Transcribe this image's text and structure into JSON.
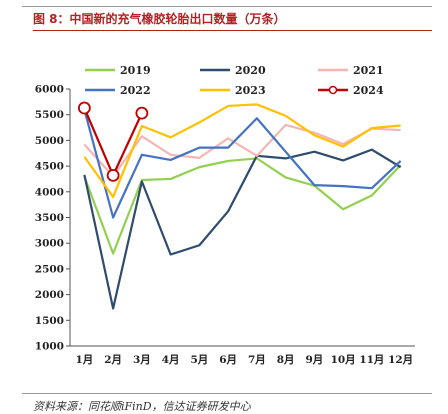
{
  "figure": {
    "title": "图 8：中国新的充气橡胶轮胎出口数量（万条）",
    "source": "资料来源：同花顺iFinD，信达证券研发中心"
  },
  "chart_data": {
    "type": "line",
    "title": "中国新的充气橡胶轮胎出口数量（万条）",
    "xlabel": "",
    "ylabel": "",
    "categories": [
      "1月",
      "2月",
      "3月",
      "4月",
      "5月",
      "6月",
      "7月",
      "8月",
      "9月",
      "10月",
      "11月",
      "12月"
    ],
    "ylim": [
      1000,
      6000
    ],
    "yticks": [
      1000,
      1500,
      2000,
      2500,
      3000,
      3500,
      4000,
      4500,
      5000,
      5500,
      6000
    ],
    "grid": false,
    "legend": "top",
    "series": [
      {
        "name": "2019",
        "color": "#92d050",
        "marker": false,
        "values": [
          4300,
          2800,
          4230,
          4250,
          4480,
          4600,
          4650,
          4280,
          4120,
          3660,
          3930,
          4520
        ]
      },
      {
        "name": "2020",
        "color": "#2f4b6e",
        "marker": false,
        "values": [
          4330,
          1730,
          4200,
          2780,
          2960,
          3620,
          4700,
          4650,
          4780,
          4610,
          4820,
          4480
        ]
      },
      {
        "name": "2021",
        "color": "#f4b6b3",
        "marker": false,
        "values": [
          4920,
          4300,
          5080,
          4720,
          4660,
          5040,
          4700,
          5300,
          5150,
          4930,
          5230,
          5200
        ]
      },
      {
        "name": "2022",
        "color": "#4472c4",
        "marker": false,
        "values": [
          5600,
          3500,
          4720,
          4620,
          4860,
          4860,
          5430,
          4780,
          4130,
          4110,
          4070,
          4600
        ]
      },
      {
        "name": "2023",
        "color": "#ffc000",
        "marker": false,
        "values": [
          4680,
          3900,
          5280,
          5060,
          5350,
          5670,
          5700,
          5480,
          5100,
          4880,
          5240,
          5290
        ]
      },
      {
        "name": "2024",
        "color": "#c00000",
        "marker": true,
        "values": [
          5630,
          4320,
          5530,
          null,
          null,
          null,
          null,
          null,
          null,
          null,
          null,
          null
        ]
      }
    ]
  }
}
